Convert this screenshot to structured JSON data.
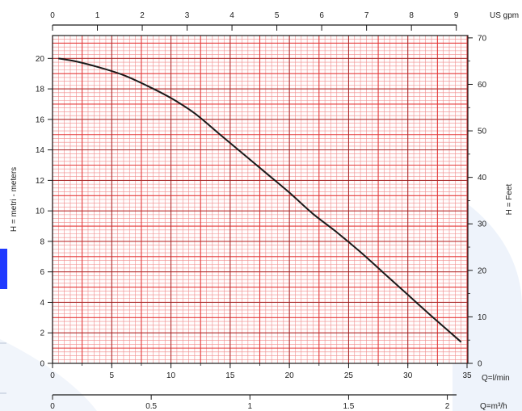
{
  "chart_data": {
    "type": "line",
    "title": "",
    "colors": {
      "curve": "#1a1a1a",
      "grid_major": "#e43a3a",
      "grid_minor": "#f08c8c",
      "axis": "#1a1a1a",
      "left_tab": "#1f39ff",
      "background_watermark": "#eef3fb"
    },
    "axes": {
      "x_bottom": {
        "label": "Q=l/min",
        "min": 0,
        "max": 35,
        "ticks": [
          "0",
          "5",
          "10",
          "15",
          "20",
          "25",
          "30",
          "35"
        ]
      },
      "x_bottom2": {
        "label": "Q=m³/h",
        "min": 0,
        "max": 2.1,
        "ticks": [
          "0",
          "0.5",
          "1",
          "1.5",
          "2"
        ]
      },
      "x_top": {
        "label": "US gpm",
        "min": 0,
        "max": 9.24,
        "ticks": [
          "0",
          "1",
          "2",
          "3",
          "4",
          "5",
          "6",
          "7",
          "8",
          "9"
        ]
      },
      "y_left": {
        "label": "H = metri - meters",
        "min": 0,
        "max": 21.5,
        "ticks": [
          "0",
          "2",
          "4",
          "6",
          "8",
          "10",
          "12",
          "14",
          "16",
          "18",
          "20"
        ]
      },
      "y_right": {
        "label": "H = Feet",
        "min": 0,
        "max": 70.5,
        "ticks": [
          "0",
          "10",
          "20",
          "30",
          "40",
          "50",
          "60",
          "70"
        ]
      }
    },
    "grid": true,
    "legend": "none",
    "series": [
      {
        "x": [
          0.5,
          2,
          4,
          6,
          8,
          10,
          12,
          14,
          16,
          18,
          20,
          22,
          24,
          26,
          28,
          30,
          32,
          34.5
        ],
        "y": [
          20.0,
          19.8,
          19.4,
          18.9,
          18.2,
          17.4,
          16.4,
          15.1,
          13.8,
          12.5,
          11.2,
          9.8,
          8.6,
          7.3,
          5.9,
          4.5,
          3.1,
          1.4
        ]
      }
    ]
  }
}
